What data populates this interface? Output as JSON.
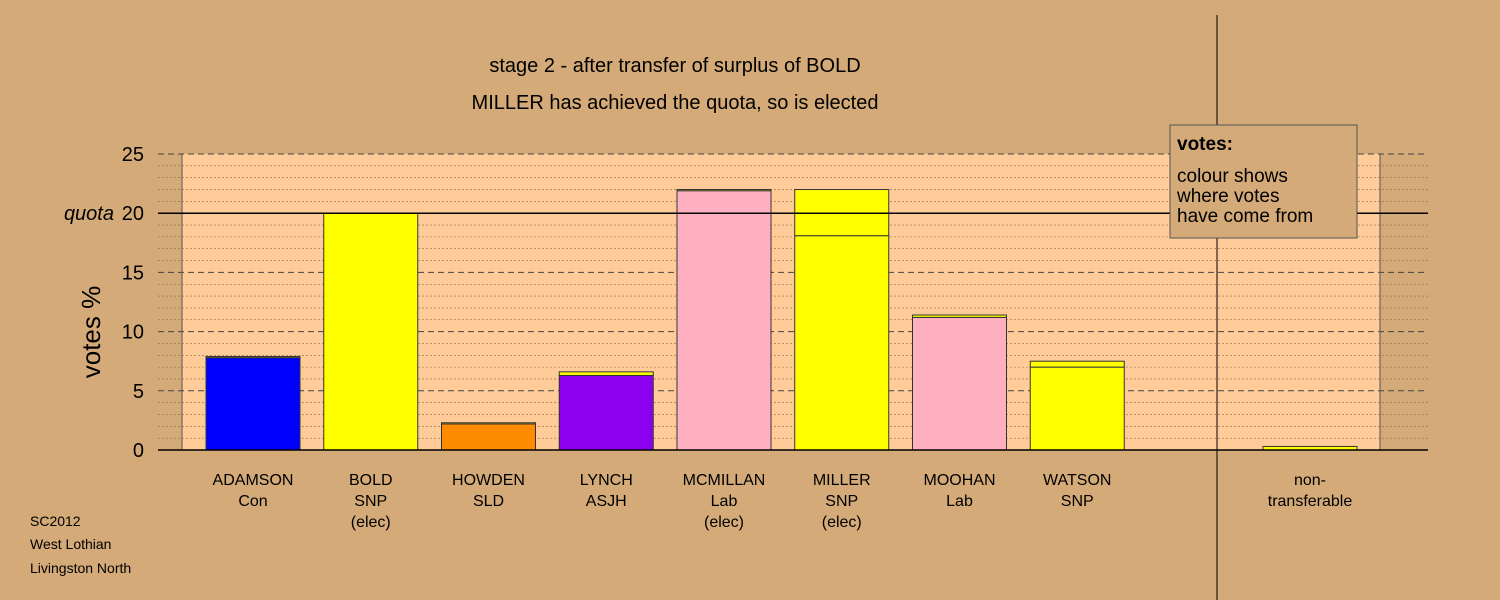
{
  "chart_data": {
    "type": "bar",
    "stacked": true,
    "title": "stage 2 - after transfer of surplus of BOLD",
    "subtitle": "MILLER has achieved the quota, so is elected",
    "ylabel": "votes %",
    "ylim": [
      0,
      25
    ],
    "yticks": [
      0,
      5,
      10,
      15,
      20,
      25
    ],
    "quota": 20,
    "quota_label": "quota",
    "grid": true,
    "legend": {
      "position": "top-right",
      "title": "votes:",
      "lines": [
        "colour shows",
        "where votes",
        "have come from"
      ]
    },
    "categories": [
      {
        "name": "ADAMSON",
        "party": "Con",
        "status": "",
        "segments": [
          {
            "value": 7.8,
            "color": "#0000ff"
          },
          {
            "value": 0.1,
            "color": "#ffff00"
          }
        ]
      },
      {
        "name": "BOLD",
        "party": "SNP",
        "status": "(elec)",
        "segments": [
          {
            "value": 20.0,
            "color": "#ffff00"
          }
        ]
      },
      {
        "name": "HOWDEN",
        "party": "SLD",
        "status": "",
        "segments": [
          {
            "value": 2.2,
            "color": "#ff8c00"
          },
          {
            "value": 0.1,
            "color": "#ffff00"
          }
        ]
      },
      {
        "name": "LYNCH",
        "party": "ASJH",
        "status": "",
        "segments": [
          {
            "value": 6.3,
            "color": "#8b00ee"
          },
          {
            "value": 0.3,
            "color": "#ffff00"
          }
        ]
      },
      {
        "name": "MCMILLAN",
        "party": "Lab",
        "status": "(elec)",
        "segments": [
          {
            "value": 21.9,
            "color": "#ffb0c0"
          },
          {
            "value": 0.1,
            "color": "#ffff00"
          }
        ]
      },
      {
        "name": "MILLER",
        "party": "SNP",
        "status": "(elec)",
        "segments": [
          {
            "value": 18.1,
            "color": "#ffff00"
          },
          {
            "value": 3.9,
            "color": "#ffff00"
          }
        ]
      },
      {
        "name": "MOOHAN",
        "party": "Lab",
        "status": "",
        "segments": [
          {
            "value": 11.2,
            "color": "#ffb0c0"
          },
          {
            "value": 0.2,
            "color": "#ffff00"
          }
        ]
      },
      {
        "name": "WATSON",
        "party": "SNP",
        "status": "",
        "segments": [
          {
            "value": 7.0,
            "color": "#ffff00"
          },
          {
            "value": 0.5,
            "color": "#ffff00"
          }
        ]
      }
    ],
    "nontransferable": {
      "label_line1": "non-",
      "label_line2": "transferable",
      "value": 0.3,
      "color": "#ffff00"
    }
  },
  "footer": [
    "SC2012",
    "West Lothian",
    "Livingston North"
  ],
  "colors": {
    "plot_bg": "#ffcc99",
    "side_bg": "#d4aa78",
    "legend_bg": "#d4aa78"
  }
}
